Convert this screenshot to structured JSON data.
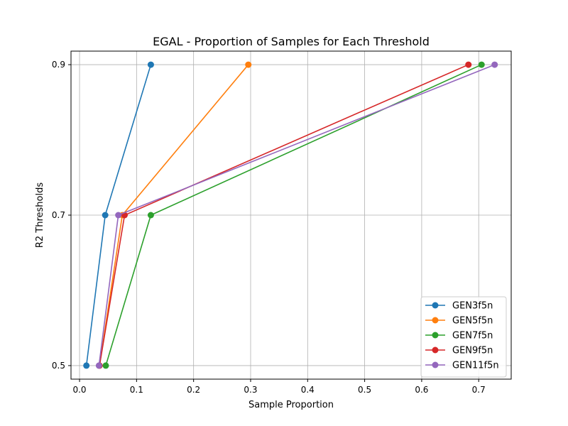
{
  "chart_data": {
    "type": "line",
    "title": "EGAL - Proportion of Samples for Each Threshold",
    "xlabel": "Sample Proportion",
    "ylabel": "R2 Thresholds",
    "xlim": [
      -0.015,
      0.757
    ],
    "ylim": [
      0.482,
      0.918
    ],
    "xticks": [
      0.0,
      0.1,
      0.2,
      0.3,
      0.4,
      0.5,
      0.6,
      0.7
    ],
    "xtick_labels": [
      "0.0",
      "0.1",
      "0.2",
      "0.3",
      "0.4",
      "0.5",
      "0.6",
      "0.7"
    ],
    "yticks": [
      0.5,
      0.7,
      0.9
    ],
    "ytick_labels": [
      "0.5",
      "0.7",
      "0.9"
    ],
    "grid": true,
    "legend_position": "bottom-right",
    "series": [
      {
        "name": "GEN3f5n",
        "color": "#1f77b4",
        "x": [
          0.012,
          0.045,
          0.125
        ],
        "y": [
          0.5,
          0.7,
          0.9
        ]
      },
      {
        "name": "GEN5f5n",
        "color": "#ff7f0e",
        "x": [
          0.035,
          0.075,
          0.296
        ],
        "y": [
          0.5,
          0.7,
          0.9
        ]
      },
      {
        "name": "GEN7f5n",
        "color": "#2ca02c",
        "x": [
          0.046,
          0.125,
          0.705
        ],
        "y": [
          0.5,
          0.7,
          0.9
        ]
      },
      {
        "name": "GEN9f5n",
        "color": "#d62728",
        "x": [
          0.035,
          0.079,
          0.682
        ],
        "y": [
          0.5,
          0.7,
          0.9
        ]
      },
      {
        "name": "GEN11f5n",
        "color": "#9467bd",
        "x": [
          0.034,
          0.068,
          0.728
        ],
        "y": [
          0.5,
          0.7,
          0.9
        ]
      }
    ]
  }
}
